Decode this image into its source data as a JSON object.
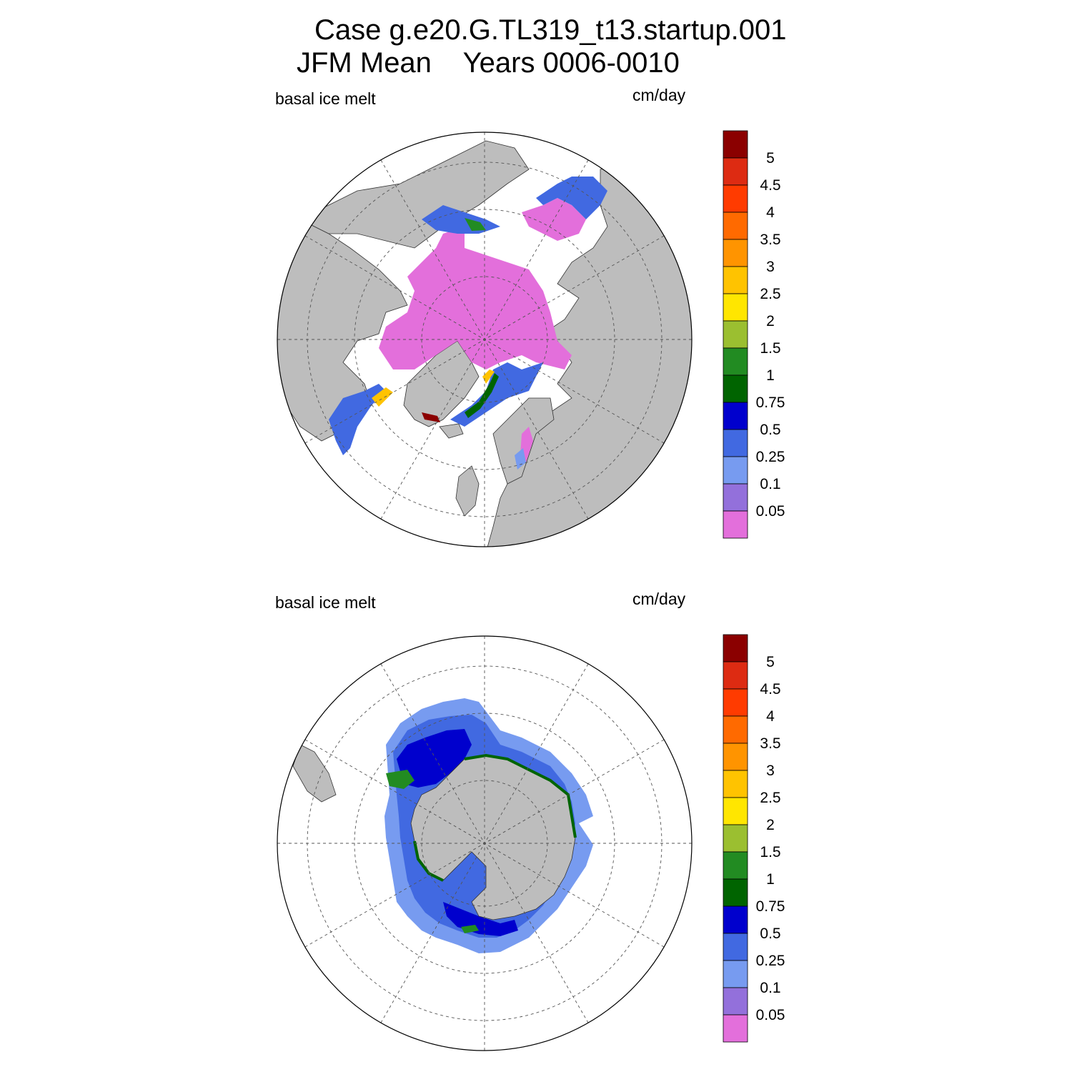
{
  "title": {
    "line1": "Case g.e20.G.TL319_t13.startup.001",
    "line2_season": "JFM Mean",
    "line2_years": "Years 0006-0010"
  },
  "panels": [
    {
      "id": "north",
      "hemisphere": "Northern",
      "variable_label": "basal ice melt",
      "units_label": "cm/day"
    },
    {
      "id": "south",
      "hemisphere": "Southern",
      "variable_label": "basal ice melt",
      "units_label": "cm/day"
    }
  ],
  "colorbar": {
    "tick_labels": [
      "5",
      "4.5",
      "4",
      "3.5",
      "3",
      "2.5",
      "2",
      "1.5",
      "1",
      "0.75",
      "0.5",
      "0.25",
      "0.1",
      "0.05"
    ],
    "colors_top_to_bottom": [
      "#8b0000",
      "#dd2b12",
      "#ff3b00",
      "#ff6a00",
      "#ff9400",
      "#ffc300",
      "#ffe600",
      "#9bbf30",
      "#228b22",
      "#006400",
      "#0000cd",
      "#4169e1",
      "#779bf0",
      "#9370db",
      "#e36fdb"
    ]
  },
  "map_style": {
    "land_color": "#bdbdbd",
    "ocean_color": "#ffffff",
    "grid_style": "dashed",
    "projection": "polar stereographic"
  }
}
